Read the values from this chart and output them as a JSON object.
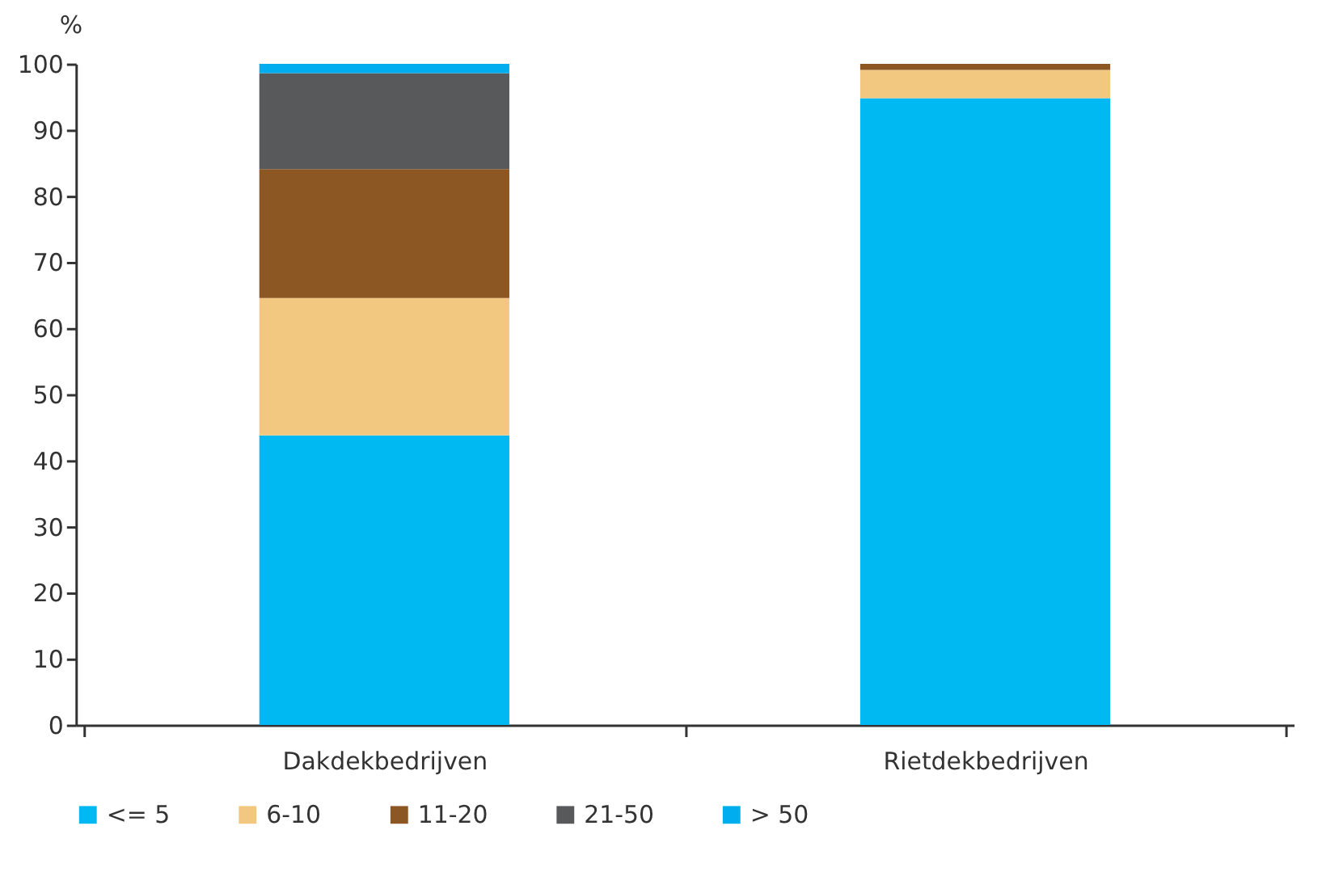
{
  "chart_data": {
    "type": "bar",
    "stacked": true,
    "ylabel": "%",
    "categories": [
      "Dakdekbedrijven",
      "Rietdekbedrijven"
    ],
    "series": [
      {
        "name": "<= 5",
        "color": "#00b9f2",
        "values": [
          43.8,
          94.8
        ]
      },
      {
        "name": "6-10",
        "color": "#f2c880",
        "values": [
          20.8,
          4.3
        ]
      },
      {
        "name": "11-20",
        "color": "#8c5722",
        "values": [
          19.5,
          0.9
        ]
      },
      {
        "name": "21-50",
        "color": "#58595b",
        "values": [
          14.5,
          0
        ]
      },
      {
        "name": "> 50",
        "color": "#00aeef",
        "values": [
          1.4,
          0
        ]
      }
    ],
    "ylim": [
      0,
      100
    ],
    "yticks": [
      0,
      10,
      20,
      30,
      40,
      50,
      60,
      70,
      80,
      90,
      100
    ],
    "grid": false,
    "legend": "bottom"
  }
}
